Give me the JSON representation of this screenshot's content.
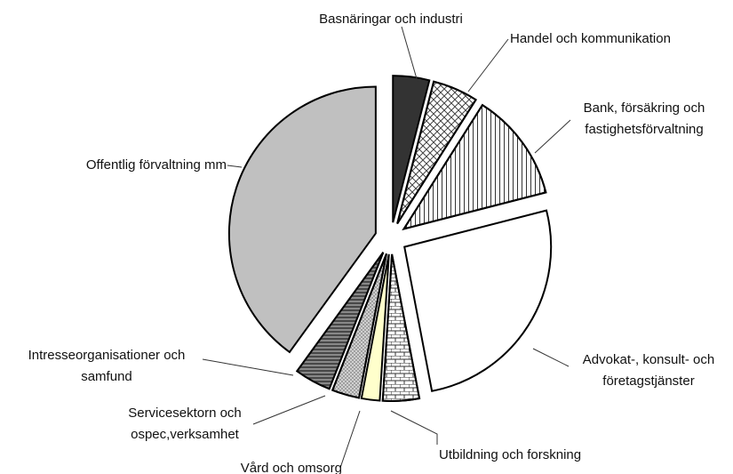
{
  "chart_data": {
    "type": "pie",
    "categories": [
      "Basnäringar och industri",
      "Handel och kommunikation",
      "Bank, försäkring och fastighetsförvaltning",
      "Advokat-, konsult- och företagstjänster",
      "Utbildning och forskning",
      "Vård och omsorg",
      "Servicesektorn och ospec,verksamhet",
      "Intresseorganisationer och samfund",
      "Offentlig förvaltning mm"
    ],
    "values": [
      4,
      5,
      12,
      26,
      4,
      2,
      3,
      4,
      40
    ],
    "colors": [
      "#333333",
      "#ffffff",
      "#ffffff",
      "#ffffff",
      "#ffffff",
      "#ffffcc",
      "#d0d0d0",
      "#ffffff",
      "#c0c0c0"
    ]
  }
}
